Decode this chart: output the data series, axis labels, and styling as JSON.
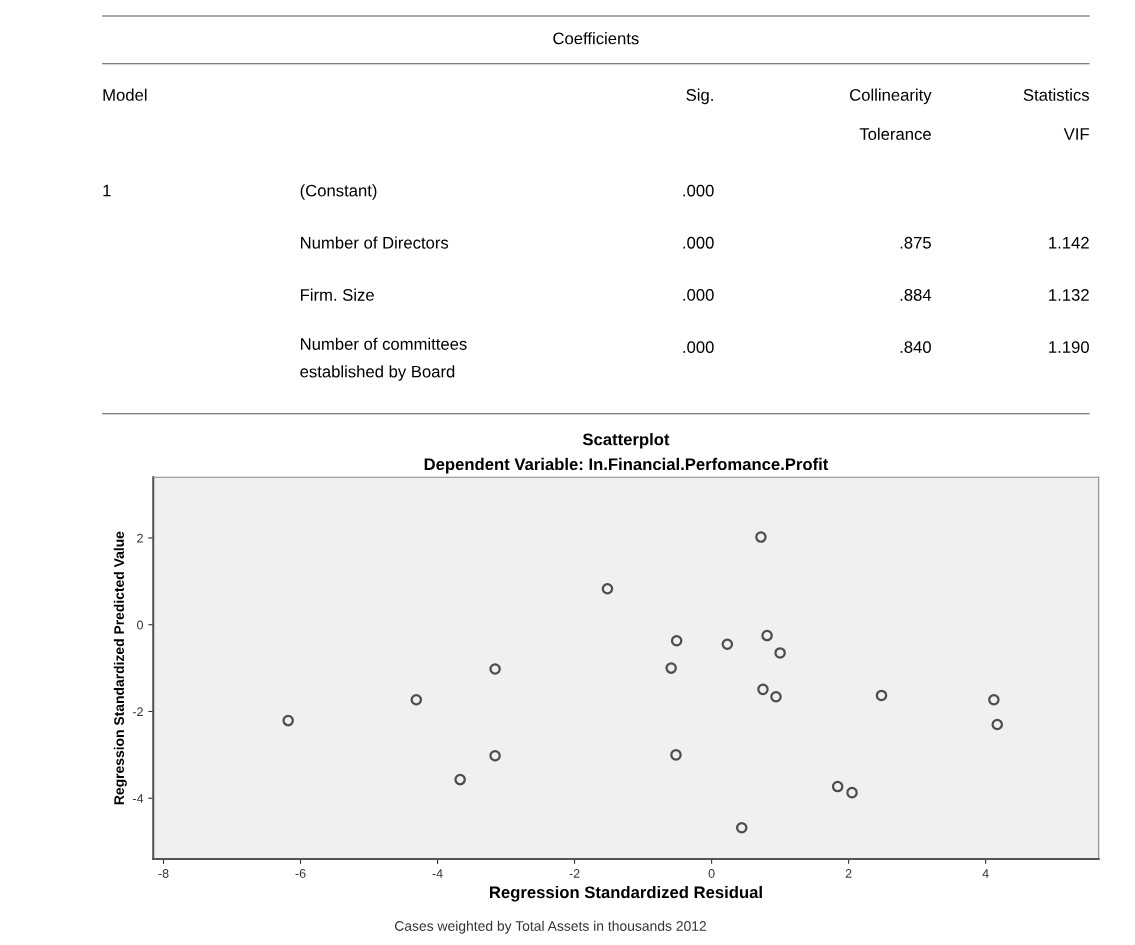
{
  "chart_data": [
    {
      "type": "other",
      "title": "Coefficients",
      "cell_labels": [
        [
          "Model",
          null,
          "Sig.",
          "Collinearity",
          "Statistics"
        ],
        [
          null,
          null,
          null,
          "Tolerance",
          "VIF"
        ],
        [
          "1",
          "(Constant)",
          ".000",
          null,
          null
        ],
        [
          null,
          "Number of Directors",
          ".000",
          ".875",
          "1.142"
        ],
        [
          null,
          "Firm. Size",
          ".000",
          ".884",
          "1.132"
        ],
        [
          null,
          "Number of committees\nestablished by Board",
          ".000",
          ".840",
          "1.190"
        ]
      ]
    },
    {
      "type": "scatter",
      "title": "Scatterplot",
      "subtitle": "Dependent Variable: In.Financial.Perfomance.Profit",
      "xlabel": "Regression Standardized Residual",
      "ylabel": "Regression Standardized Predicted Value",
      "annotations": [
        "Cases weighted by Total Assets in thousands 2012"
      ],
      "xlim": [
        -8.15,
        5.65
      ],
      "ylim": [
        -5.4,
        3.4
      ],
      "xticks": [
        -8,
        -6,
        -4,
        -2,
        0,
        2,
        4
      ],
      "yticks": [
        -4,
        -2,
        0,
        2
      ],
      "grid": false,
      "marker": "circle",
      "series": [
        {
          "color": "#4d4d4d",
          "x": [
            -6.18,
            -4.31,
            -3.16,
            -3.16,
            -1.52,
            0.72,
            -0.51,
            0.23,
            0.81,
            1.0,
            -0.59,
            0.75,
            0.94,
            2.48,
            4.12,
            4.17,
            -0.52,
            -3.67,
            1.84,
            2.05,
            0.44
          ],
          "values": [
            -2.21,
            -1.73,
            -1.02,
            -3.02,
            0.83,
            2.02,
            -0.37,
            -0.45,
            -0.25,
            -0.65,
            -1.0,
            -1.49,
            -1.66,
            -1.63,
            -1.73,
            -2.3,
            -3.0,
            -3.57,
            -3.73,
            -3.87,
            -4.68
          ]
        }
      ]
    }
  ]
}
